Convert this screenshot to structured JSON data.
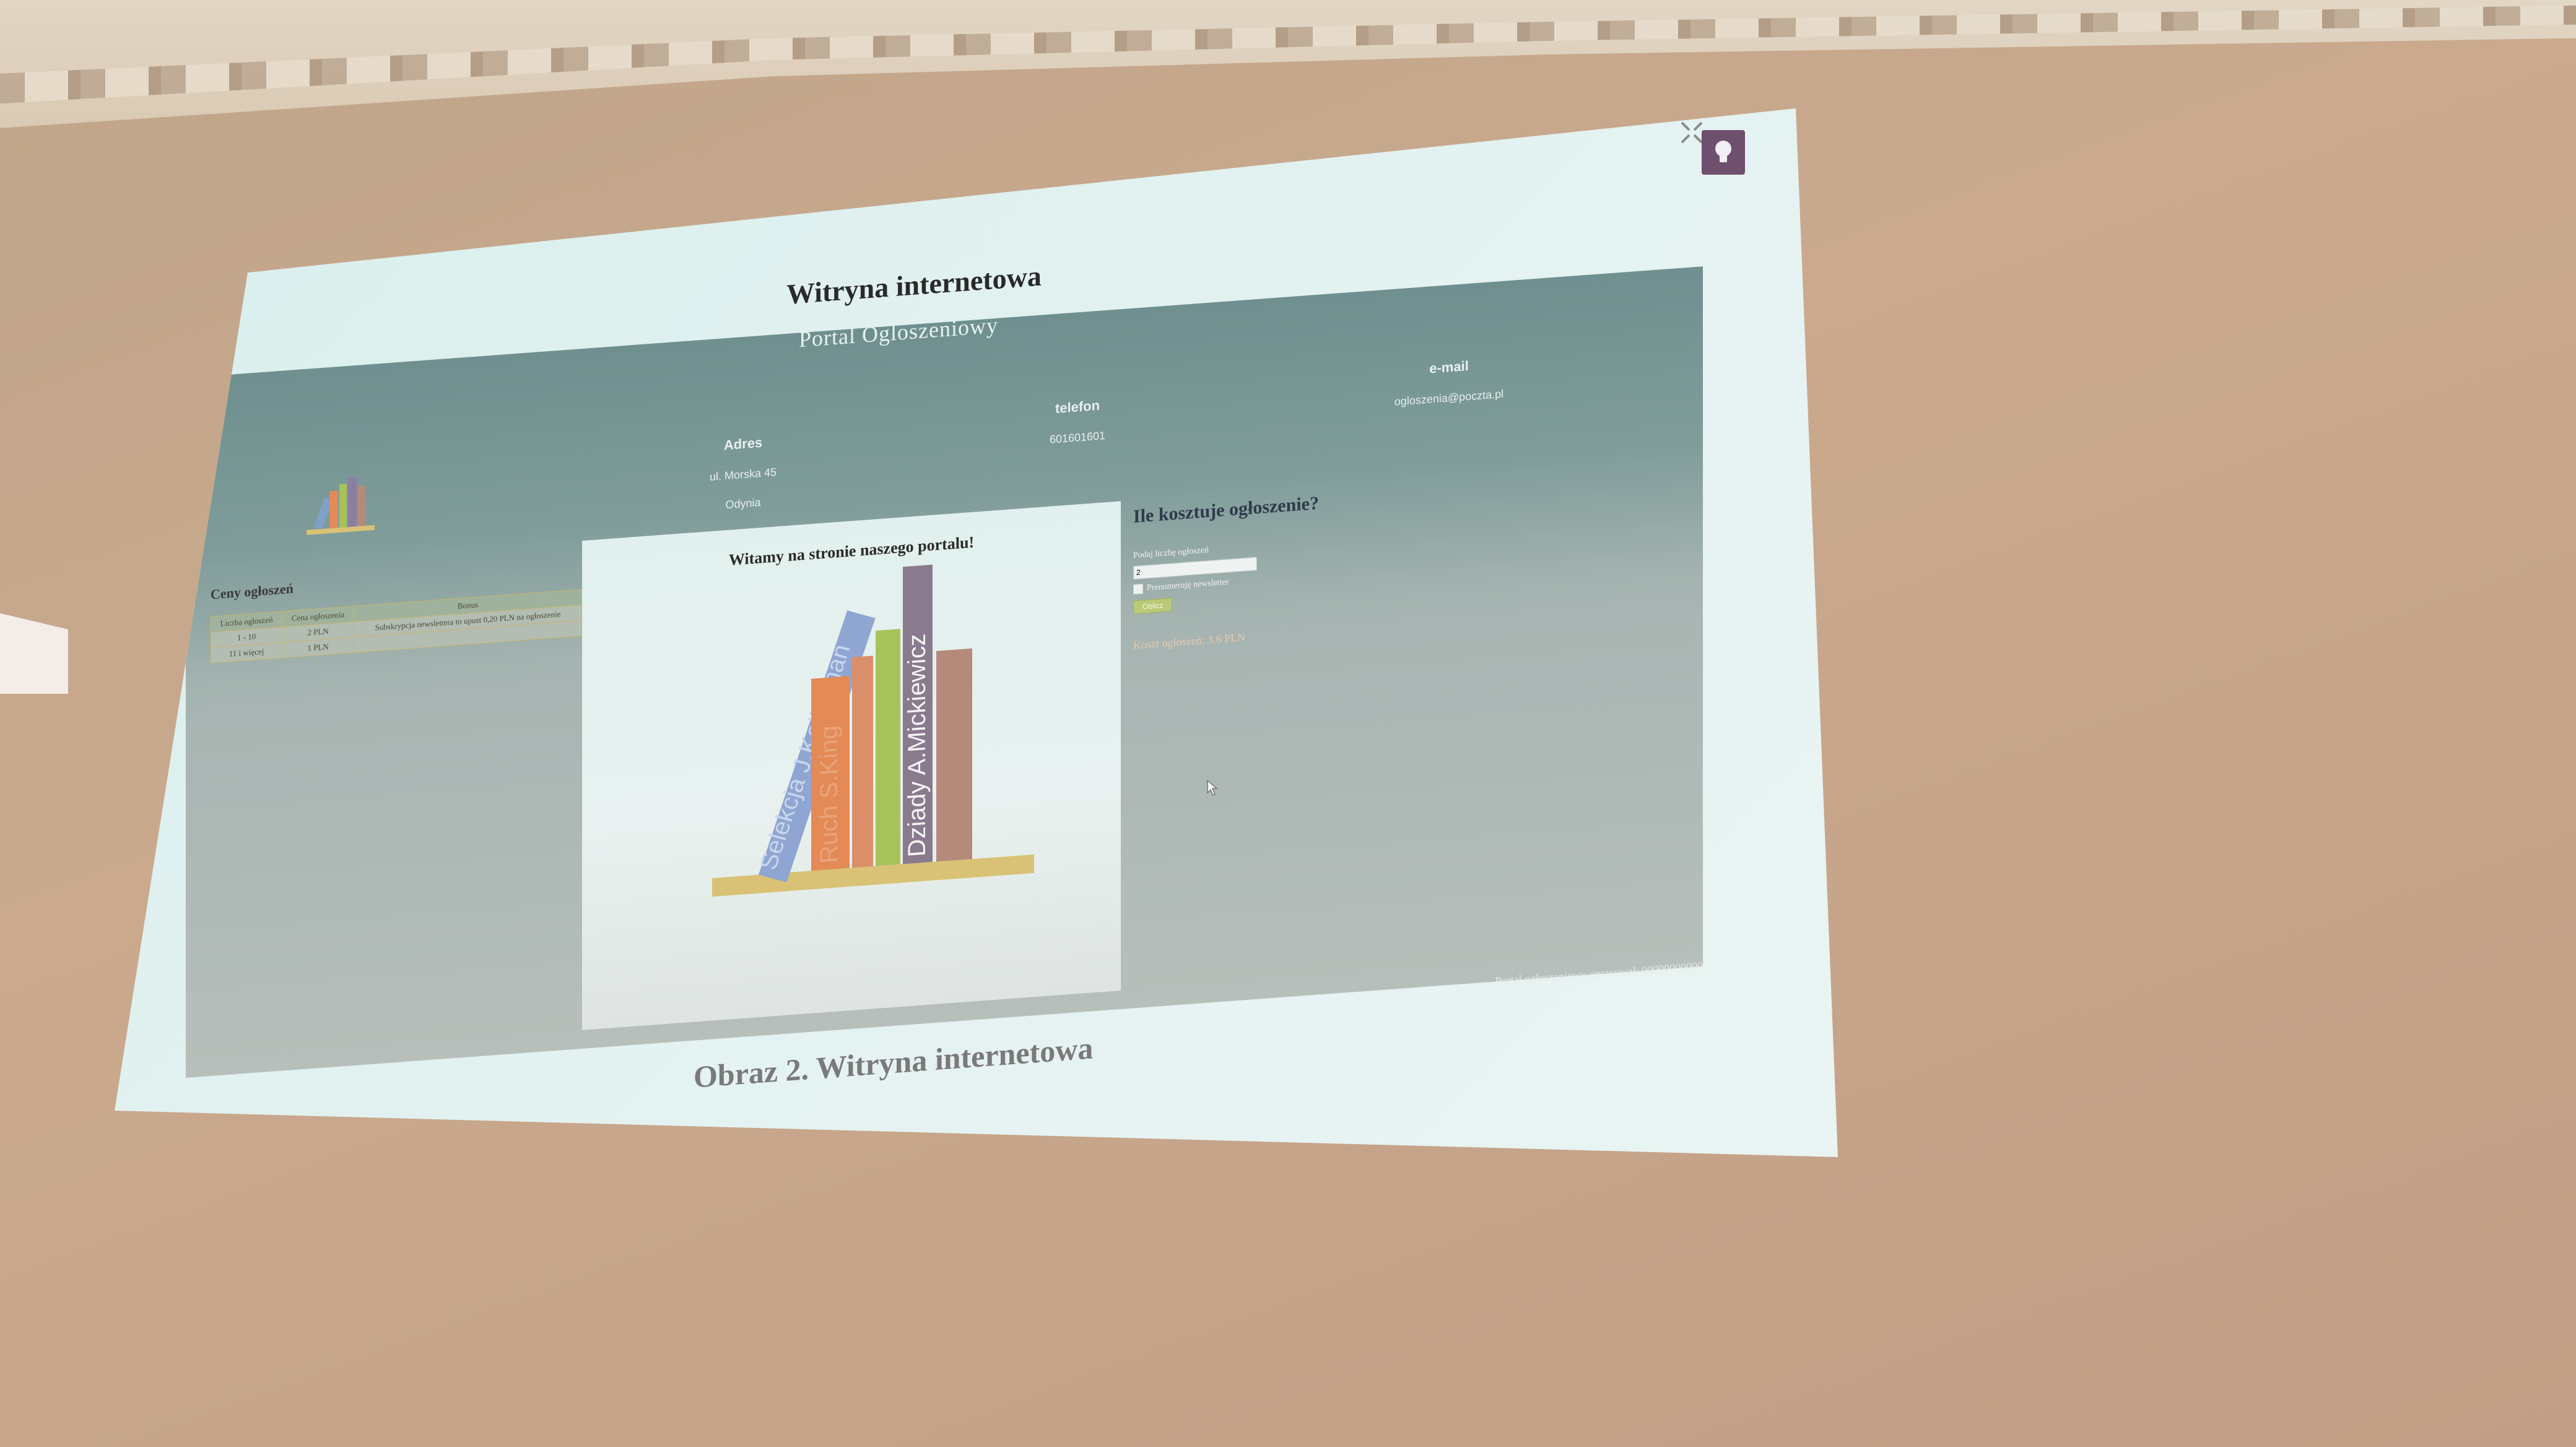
{
  "document": {
    "title": "Witryna internetowa",
    "caption": "Obraz 2. Witryna internetowa"
  },
  "site": {
    "portal_name": "Portal Ogloszeniowy",
    "contact": {
      "adres_label": "Adres",
      "adres_line1": "ul. Morska 45",
      "adres_line2": "Odynia",
      "telefon_label": "telefon",
      "telefon_value": "601601601",
      "email_label": "e-mail",
      "email_value": "ogloszenia@poczta.pl"
    },
    "prices": {
      "heading": "Ceny ogłoszeń",
      "columns": [
        "Liczba ogłoszeń",
        "Cena ogłoszenia",
        "Bonus"
      ],
      "rows": [
        [
          "1 - 10",
          "2 PLN",
          "Subskrypcja newslettera to upust 0,20 PLN na ogłoszenie"
        ],
        [
          "11 i więcej",
          "1 PLN",
          ""
        ]
      ]
    },
    "welcome": "Witamy na stronie naszego portalu!",
    "books": [
      "Selekcja J.Kellerman",
      "Ruch S.King",
      "Dziady A.Mickiewicz"
    ],
    "calculator": {
      "heading": "Ile kosztuje ogłoszenie?",
      "count_label": "Podaj liczbę ogłoszeń",
      "count_value": "2",
      "checkbox_label": "Prenumeruję newsletter",
      "button_label": "Oblicz",
      "result": "Koszt ogłoszeń: 3.6 PLN"
    },
    "footer": "Portal ogłoszeniowy opracował: 00000000000"
  },
  "colors": {
    "header_teal": "#6f908f",
    "bulb_button": "#6e4f6e",
    "shelf": "#d9c275"
  }
}
